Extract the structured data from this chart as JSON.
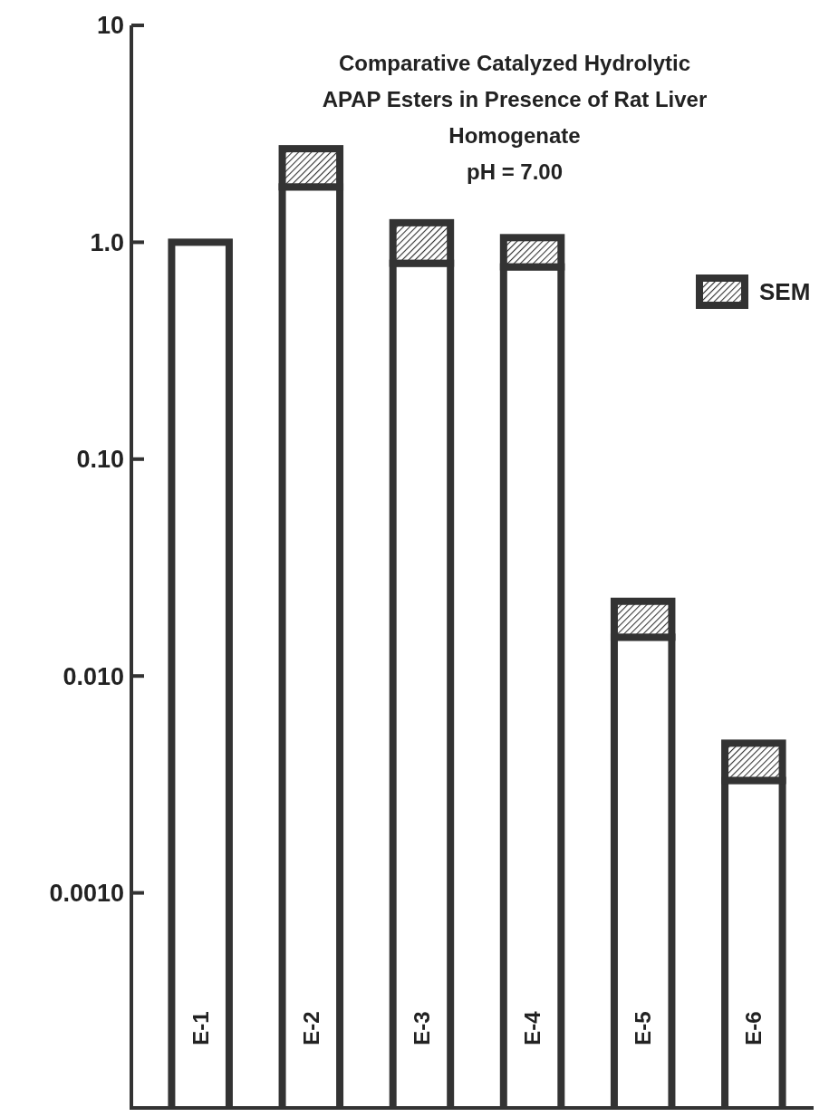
{
  "chart_data": {
    "type": "bar",
    "title": "Comparative Catalyzed Hydrolytic APAP Esters in Presence of Rat Liver Homogenate",
    "subtitle": "pH = 7.00",
    "categories": [
      "E-1",
      "E-2",
      "E-3",
      "E-4",
      "E-5",
      "E-6"
    ],
    "stacked": true,
    "log": true,
    "ylim": [
      0.0001,
      10
    ],
    "yticks": [
      {
        "value": 10,
        "label": "10"
      },
      {
        "value": 1,
        "label": "1.0"
      },
      {
        "value": 0.1,
        "label": "0.10"
      },
      {
        "value": 0.01,
        "label": "0.010"
      },
      {
        "value": 0.001,
        "label": "0.0010"
      }
    ],
    "legend": "right",
    "series": [
      {
        "color": "#ffffff",
        "values": [
          1.0,
          1.8,
          0.8,
          0.77,
          0.015,
          0.0032
        ]
      },
      {
        "name": "SEM",
        "color": "#333333",
        "values": [
          null,
          0.9,
          0.43,
          0.28,
          0.007,
          0.0016
        ]
      }
    ]
  }
}
